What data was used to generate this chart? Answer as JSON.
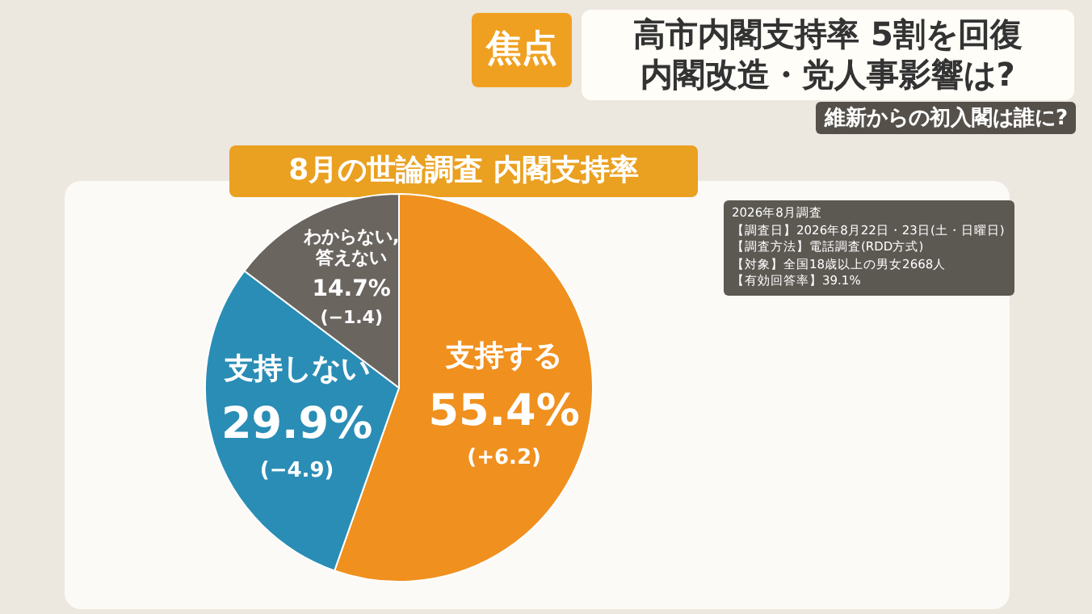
{
  "chart_data": {
    "type": "pie",
    "title": "高市内閣支持率 5割を回復",
    "subtitle": "内閣改造・党人事影響は?",
    "categories": [
      "支持する",
      "支持しない",
      "わからない,\n答えない"
    ],
    "values": [
      55.4,
      29.9,
      14.7
    ],
    "colors": [
      "#f0901e",
      "#2a8db5",
      "#6b6560"
    ],
    "value_labels": [
      "55.4%",
      "29.9%",
      "14.7%"
    ],
    "annotations": [
      {
        "text": "(+6.2)",
        "x": "支持する"
      },
      {
        "text": "(−4.9)",
        "x": "支持しない"
      },
      {
        "text": "(−1.4)",
        "x": "わからない,\n答えない"
      },
      "焦点",
      "維新からの初入閣は誰に?",
      "8月の世論調査 内閣支持率",
      "2026年8月調査",
      "【調査日】2026年8月22日・23日(土・日曜日)",
      "【調査方法】電話調査(RDD方式)",
      "【対象】全国18歳以上の男女2668人",
      "【有効回答率】39.1%"
    ]
  }
}
